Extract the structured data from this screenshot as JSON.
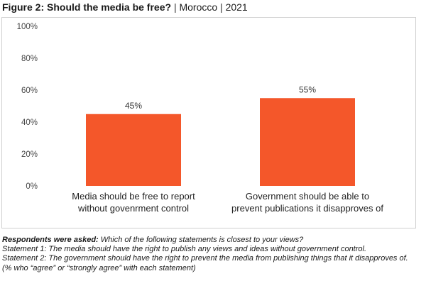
{
  "header": {
    "title_bold": "Figure 2: Should the media be free?",
    "separator": "|",
    "country": "Morocco",
    "year": "2021"
  },
  "chart_data": {
    "type": "bar",
    "categories": [
      [
        "Media should be free to report",
        "without govenrment control"
      ],
      [
        "Government should be able to",
        "prevent publications it disapproves of"
      ]
    ],
    "values": [
      45,
      55
    ],
    "value_labels": [
      "45%",
      "55%"
    ],
    "ylim": [
      0,
      100
    ],
    "yticks": [
      "0%",
      "20%",
      "40%",
      "60%",
      "80%",
      "100%"
    ],
    "ytick_values": [
      0,
      20,
      40,
      60,
      80,
      100
    ],
    "grid": false,
    "bar_color": "#f4572a"
  },
  "notes": {
    "asked_label": "Respondents were asked:",
    "asked_text": " Which of the following statements is closest to your views?",
    "statement1": "Statement 1: The media should have the right to publish any views and ideas without government control.",
    "statement2": "Statement 2: The government should have the right to prevent the media from publishing things that it disapproves of.",
    "measure": "(% who “agree” or “strongly agree” with each statement)"
  }
}
